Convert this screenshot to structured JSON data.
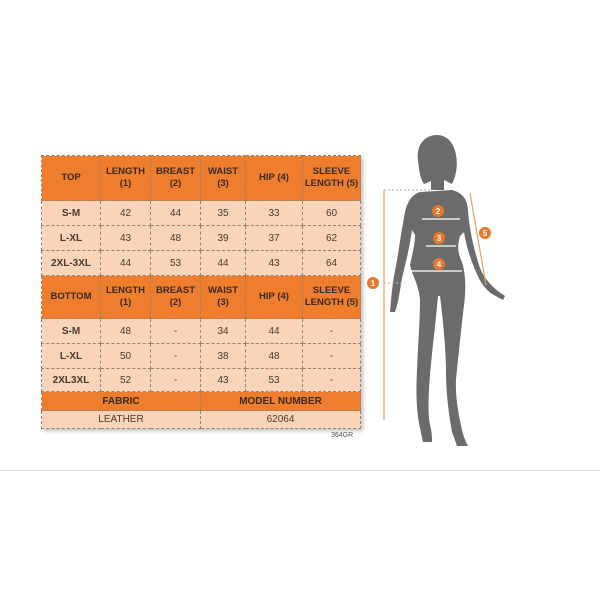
{
  "top_table": {
    "headers": [
      "TOP",
      "LENGTH (1)",
      "BREAST (2)",
      "WAIST (3)",
      "HIP (4)",
      "SLEEVE LENGTH (5)"
    ],
    "rows": [
      [
        "S-M",
        "42",
        "44",
        "35",
        "33",
        "60"
      ],
      [
        "L-XL",
        "43",
        "48",
        "39",
        "37",
        "62"
      ],
      [
        "2XL-3XL",
        "44",
        "53",
        "44",
        "43",
        "64"
      ]
    ]
  },
  "bottom_table": {
    "headers": [
      "BOTTOM",
      "LENGTH (1)",
      "BREAST (2)",
      "WAIST (3)",
      "HIP (4)",
      "SLEEVE LENGTH (5)"
    ],
    "rows": [
      [
        "S-M",
        "48",
        "-",
        "34",
        "44",
        "-"
      ],
      [
        "L-XL",
        "50",
        "-",
        "38",
        "48",
        "-"
      ],
      [
        "2XL3XL",
        "52",
        "-",
        "43",
        "53",
        "-"
      ]
    ]
  },
  "footer": {
    "fabric_label": "FABRIC",
    "model_label": "MODEL NUMBER",
    "fabric": "LEATHER",
    "model": "62064"
  },
  "code": "364GR",
  "markers": [
    "1",
    "2",
    "3",
    "4",
    "5"
  ],
  "colors": {
    "header": "#ee7d2e",
    "row": "#fad4b8",
    "silhouette": "#6b6b6b",
    "marker": "#e8772e"
  }
}
